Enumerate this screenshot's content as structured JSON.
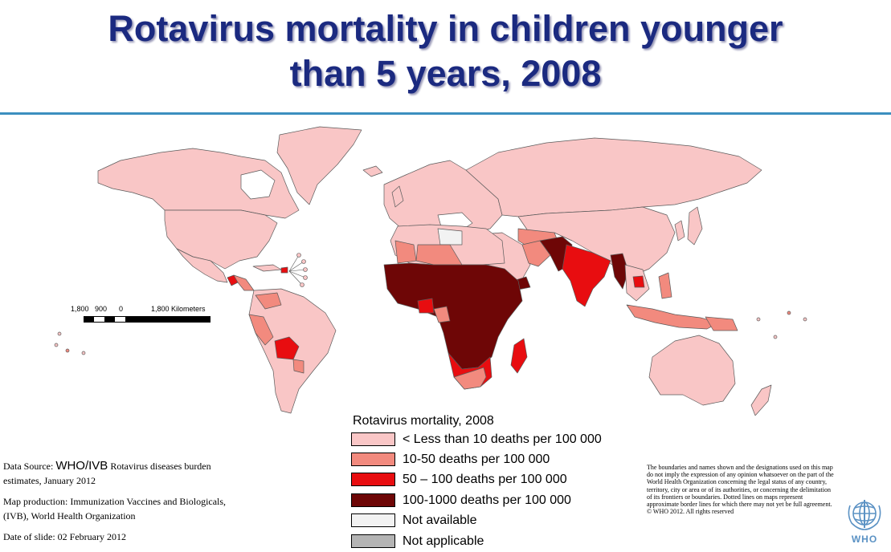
{
  "title_line1": "Rotavirus mortality in children younger",
  "title_line2": "than 5 years, 2008",
  "scale": {
    "labels": [
      "1,800",
      "900",
      "0",
      "1,800 Kilometers"
    ]
  },
  "legend": {
    "title": "Rotavirus mortality, 2008",
    "items": [
      {
        "label": "< Less than 10 deaths per 100 000",
        "color": "#f9c6c6"
      },
      {
        "label": "10-50 deaths per 100 000",
        "color": "#f28a7e"
      },
      {
        "label": "50 – 100 deaths per 100 000",
        "color": "#e80d10"
      },
      {
        "label": "100-1000 deaths per 100 000",
        "color": "#6e0606"
      },
      {
        "label": "Not available",
        "color": "#f2f2f2"
      },
      {
        "label": "Not applicable",
        "color": "#b4b4b4"
      }
    ]
  },
  "source": {
    "prefix": "Data Source: ",
    "org": "WHO/IVB",
    "rest": " Rotavirus  diseases burden estimates, January 2012",
    "production": "Map production: Immunization Vaccines and Biologicals, (IVB), World Health Organization",
    "date": "Date of slide: 02 February 2012"
  },
  "disclaimer": "The boundaries and names shown and the designations used on this map do not imply the expression of any opinion whatsoever on the part of the World Health Organization concerning the legal status of any country, territory, city or area or of its authorities, or concerning the delimitation of its frontiers or boundaries. Dotted lines on maps represent approximate border lines for which there may not yet be full agreement.",
  "copyright": "© WHO 2012. All rights reserved",
  "logo_text": "WHO",
  "colors": {
    "title": "#1b2a80",
    "rule": "#3c8fbf",
    "border": "#555555"
  }
}
